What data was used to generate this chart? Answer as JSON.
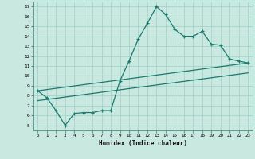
{
  "xlabel": "Humidex (Indice chaleur)",
  "bg_color": "#c8e8e0",
  "plot_bg_color": "#c8e8e0",
  "line_color": "#1a7a6e",
  "xlim": [
    -0.5,
    23.5
  ],
  "ylim": [
    4.5,
    17.5
  ],
  "xticks": [
    0,
    1,
    2,
    3,
    4,
    5,
    6,
    7,
    8,
    9,
    10,
    11,
    12,
    13,
    14,
    15,
    16,
    17,
    18,
    19,
    20,
    21,
    22,
    23
  ],
  "yticks": [
    5,
    6,
    7,
    8,
    9,
    10,
    11,
    12,
    13,
    14,
    15,
    16,
    17
  ],
  "line1_x": [
    0,
    1,
    2,
    3,
    4,
    5,
    6,
    7,
    8,
    9,
    10,
    11,
    12,
    13,
    14,
    15,
    16,
    17,
    18,
    19,
    20,
    21,
    22,
    23
  ],
  "line1_y": [
    8.5,
    7.8,
    6.5,
    5.0,
    6.2,
    6.3,
    6.3,
    6.5,
    6.5,
    9.5,
    11.5,
    13.7,
    15.3,
    17.0,
    16.2,
    14.7,
    14.0,
    14.0,
    14.5,
    13.2,
    13.1,
    11.7,
    11.5,
    11.3
  ],
  "line2_x": [
    0,
    23
  ],
  "line2_y": [
    8.5,
    11.3
  ],
  "line3_x": [
    0,
    23
  ],
  "line3_y": [
    7.5,
    10.3
  ]
}
